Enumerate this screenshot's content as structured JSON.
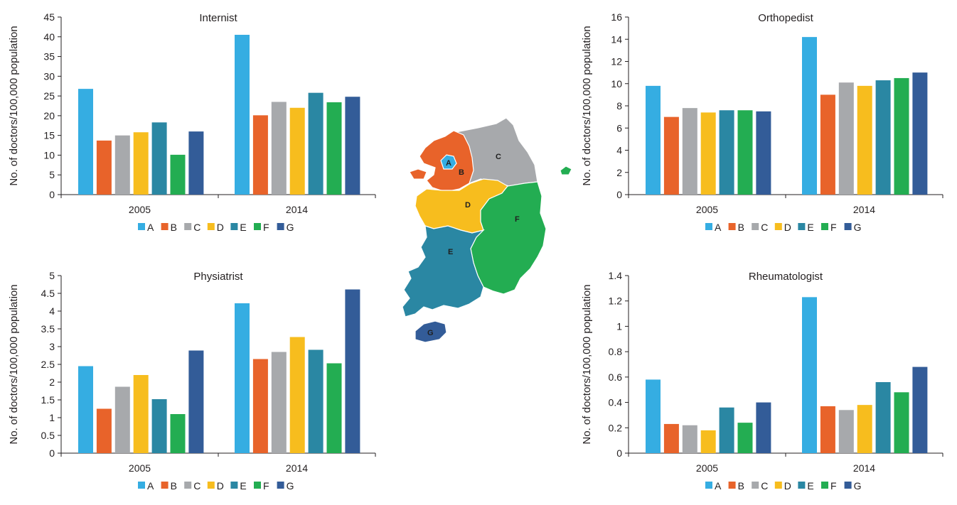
{
  "colors": {
    "A": "#35ade2",
    "B": "#e8632a",
    "C": "#a7a9ac",
    "D": "#f7bd1e",
    "E": "#2a87a3",
    "F": "#23ad52",
    "G": "#335c98"
  },
  "map": {
    "region_labels": [
      "A",
      "B",
      "C",
      "D",
      "E",
      "F",
      "G"
    ],
    "colors": {
      "A": "#35ade2",
      "B": "#e8632a",
      "C": "#a7a9ac",
      "D": "#f7bd1e",
      "E": "#2a87a3",
      "F": "#23ad52",
      "G": "#335c98"
    }
  },
  "chart_data": [
    {
      "type": "bar",
      "title": "Internist",
      "ylabel": "No. of doctors/100,000 population",
      "categories": [
        "2005",
        "2014"
      ],
      "ylim": [
        0,
        45
      ],
      "yticks": [
        0,
        5,
        10,
        15,
        20,
        25,
        30,
        35,
        40,
        45
      ],
      "ytick_labels": [
        "0",
        "5",
        "10",
        "15",
        "20",
        "25",
        "30",
        "35",
        "40",
        "45"
      ],
      "legend": "bottom",
      "series": [
        {
          "name": "A",
          "values": [
            26.8,
            40.5
          ]
        },
        {
          "name": "B",
          "values": [
            13.7,
            20.1
          ]
        },
        {
          "name": "C",
          "values": [
            15.0,
            23.5
          ]
        },
        {
          "name": "D",
          "values": [
            15.8,
            22.0
          ]
        },
        {
          "name": "E",
          "values": [
            18.3,
            25.8
          ]
        },
        {
          "name": "F",
          "values": [
            10.1,
            23.4
          ]
        },
        {
          "name": "G",
          "values": [
            16.0,
            24.8
          ]
        }
      ]
    },
    {
      "type": "bar",
      "title": "Orthopedist",
      "ylabel": "No. of doctors/100,000 population",
      "categories": [
        "2005",
        "2014"
      ],
      "ylim": [
        0,
        16
      ],
      "yticks": [
        0,
        2,
        4,
        6,
        8,
        10,
        12,
        14,
        16
      ],
      "ytick_labels": [
        "0",
        "2",
        "4",
        "6",
        "8",
        "10",
        "12",
        "14",
        "16"
      ],
      "legend": "bottom",
      "series": [
        {
          "name": "A",
          "values": [
            9.8,
            14.2
          ]
        },
        {
          "name": "B",
          "values": [
            7.0,
            9.0
          ]
        },
        {
          "name": "C",
          "values": [
            7.8,
            10.1
          ]
        },
        {
          "name": "D",
          "values": [
            7.4,
            9.8
          ]
        },
        {
          "name": "E",
          "values": [
            7.6,
            10.3
          ]
        },
        {
          "name": "F",
          "values": [
            7.6,
            10.5
          ]
        },
        {
          "name": "G",
          "values": [
            7.5,
            11.0
          ]
        }
      ]
    },
    {
      "type": "bar",
      "title": "Physiatrist",
      "ylabel": "No. of doctors/100,000 population",
      "categories": [
        "2005",
        "2014"
      ],
      "ylim": [
        0,
        5
      ],
      "yticks": [
        0,
        0.5,
        1,
        1.5,
        2,
        2.5,
        3,
        3.5,
        4,
        4.5,
        5
      ],
      "ytick_labels": [
        "0",
        "0.5",
        "1",
        "1.5",
        "2",
        "2.5",
        "3",
        "3.5",
        "4",
        "4.5",
        "5"
      ],
      "legend": "bottom",
      "series": [
        {
          "name": "A",
          "values": [
            2.45,
            4.22
          ]
        },
        {
          "name": "B",
          "values": [
            1.25,
            2.65
          ]
        },
        {
          "name": "C",
          "values": [
            1.87,
            2.85
          ]
        },
        {
          "name": "D",
          "values": [
            2.2,
            3.27
          ]
        },
        {
          "name": "E",
          "values": [
            1.52,
            2.91
          ]
        },
        {
          "name": "F",
          "values": [
            1.1,
            2.53
          ]
        },
        {
          "name": "G",
          "values": [
            2.89,
            4.61
          ]
        }
      ]
    },
    {
      "type": "bar",
      "title": "Rheumatologist",
      "ylabel": "No. of doctors/100,000 population",
      "categories": [
        "2005",
        "2014"
      ],
      "ylim": [
        0,
        1.4
      ],
      "yticks": [
        0,
        0.2,
        0.4,
        0.6,
        0.8,
        1,
        1.2,
        1.4
      ],
      "ytick_labels": [
        "0",
        "0.2",
        "0.4",
        "0.6",
        "0.8",
        "1",
        "1.2",
        "1.4"
      ],
      "legend": "bottom",
      "series": [
        {
          "name": "A",
          "values": [
            0.58,
            1.23
          ]
        },
        {
          "name": "B",
          "values": [
            0.23,
            0.37
          ]
        },
        {
          "name": "C",
          "values": [
            0.22,
            0.34
          ]
        },
        {
          "name": "D",
          "values": [
            0.18,
            0.38
          ]
        },
        {
          "name": "E",
          "values": [
            0.36,
            0.56
          ]
        },
        {
          "name": "F",
          "values": [
            0.24,
            0.48
          ]
        },
        {
          "name": "G",
          "values": [
            0.4,
            0.68
          ]
        }
      ]
    }
  ]
}
